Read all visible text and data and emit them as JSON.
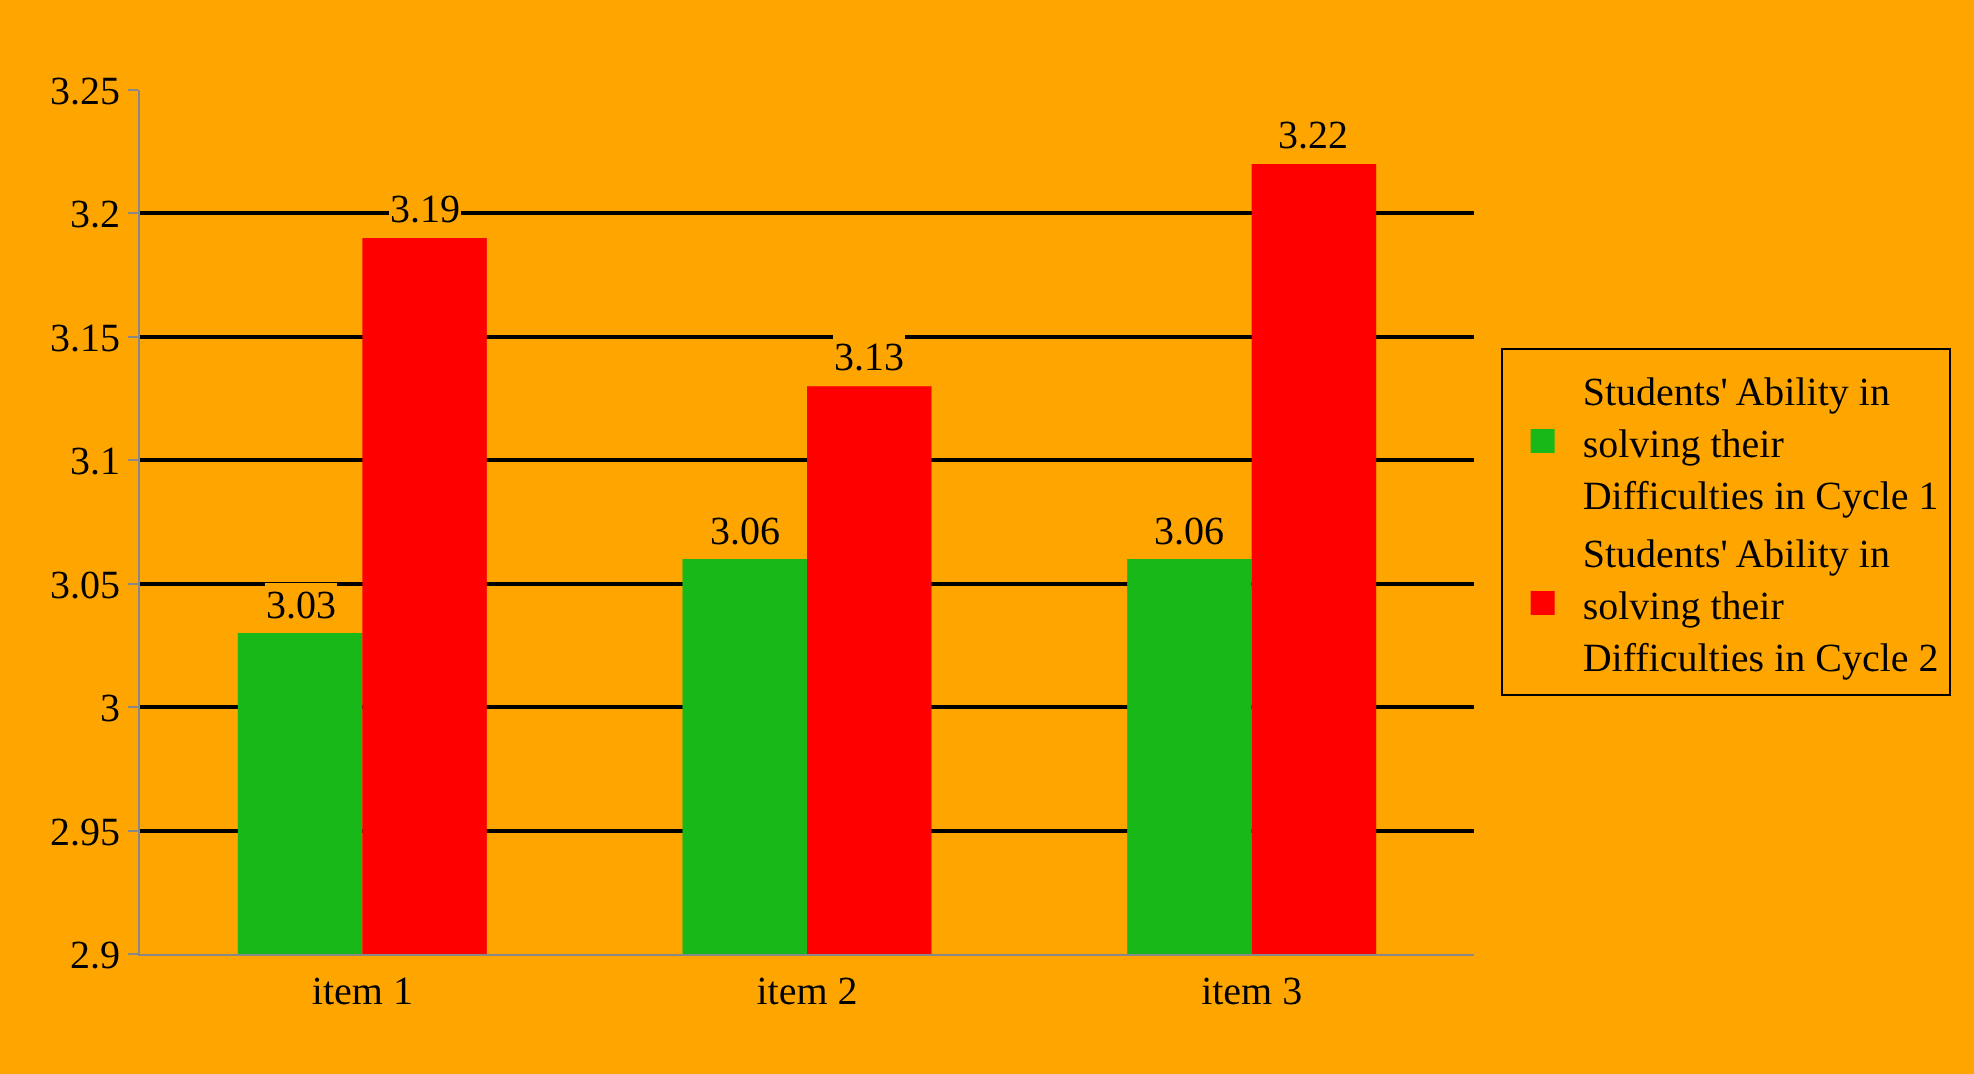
{
  "chart_data": {
    "type": "bar",
    "categories": [
      "item 1",
      "item 2",
      "item 3"
    ],
    "series": [
      {
        "name": "Students' Ability in solving their Difficulties in Cycle 1",
        "color": "#18b818",
        "values": [
          3.03,
          3.06,
          3.06
        ]
      },
      {
        "name": "Students' Ability in solving their Difficulties in Cycle 2",
        "color": "#ff0000",
        "values": [
          3.19,
          3.13,
          3.22
        ]
      }
    ],
    "ylim": [
      2.9,
      3.25
    ],
    "yticks": [
      2.9,
      2.95,
      3,
      3.05,
      3.1,
      3.15,
      3.2,
      3.25
    ],
    "grid": "y",
    "legend": "right",
    "data_labels": true
  }
}
